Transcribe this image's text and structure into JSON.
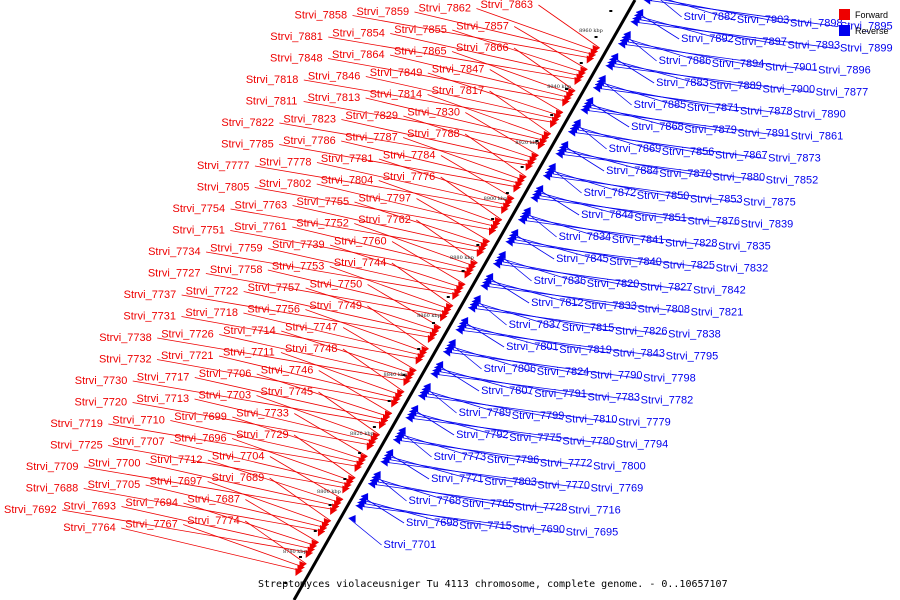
{
  "caption": "Streptomyces violaceusniger Tu 4113 chromosome, complete genome. - 0..10657107",
  "legend": [
    {
      "label": "Forward",
      "color": "#ee0000"
    },
    {
      "label": "Reverse",
      "color": "#0000ee"
    }
  ],
  "colors": {
    "forward": "#ee0000",
    "reverse": "#0000ee",
    "axis": "#000000"
  },
  "ticks": [
    "8780 kbp",
    "8800 kbp",
    "8820 kbp",
    "8840 kbp",
    "8860 kbp",
    "8880 kbp",
    "8900 kbp",
    "8920 kbp",
    "8940 kbp",
    "8960 kbp"
  ],
  "forward_labels": [
    "Strvi_7863",
    "Strvi_7862",
    "Strvi_7859",
    "Strvi_7858",
    "Strvi_7857",
    "Strvi_7855",
    "Strvi_7854",
    "Strvi_7881",
    "Strvi_7866",
    "Strvi_7865",
    "Strvi_7864",
    "Strvi_7848",
    "Strvi_7847",
    "Strvi_7849",
    "Strvi_7846",
    "Strvi_7818",
    "Strvi_7817",
    "Strvi_7814",
    "Strvi_7813",
    "Strvi_7811",
    "Strvi_7830",
    "Strvi_7829",
    "Strvi_7823",
    "Strvi_7822",
    "Strvi_7788",
    "Strvi_7787",
    "Strvi_7786",
    "Strvi_7785",
    "Strvi_7784",
    "Strvi_7781",
    "Strvi_7778",
    "Strvi_7777",
    "Strvi_7776",
    "Strvi_7804",
    "Strvi_7802",
    "Strvi_7805",
    "Strvi_7797",
    "Strvi_7755",
    "Strvi_7763",
    "Strvi_7754",
    "Strvi_7762",
    "Strvi_7752",
    "Strvi_7761",
    "Strvi_7751",
    "Strvi_7760",
    "Strvi_7739",
    "Strvi_7759",
    "Strvi_7734",
    "Strvi_7744",
    "Strvi_7753",
    "Strvi_7758",
    "Strvi_7727",
    "Strvi_7750",
    "Strvi_7757",
    "Strvi_7722",
    "Strvi_7737",
    "Strvi_7749",
    "Strvi_7756",
    "Strvi_7718",
    "Strvi_7731",
    "Strvi_7747",
    "Strvi_7714",
    "Strvi_7726",
    "Strvi_7738",
    "Strvi_7748",
    "Strvi_7711",
    "Strvi_7721",
    "Strvi_7732",
    "Strvi_7746",
    "Strvi_7706",
    "Strvi_7717",
    "Strvi_7730",
    "Strvi_7745",
    "Strvi_7703",
    "Strvi_7713",
    "Strvi_7720",
    "Strvi_7733",
    "Strvi_7699",
    "Strvi_7710",
    "Strvi_7719",
    "Strvi_7729",
    "Strvi_7696",
    "Strvi_7707",
    "Strvi_7725",
    "Strvi_7704",
    "Strvi_7712",
    "Strvi_7700",
    "Strvi_7709",
    "Strvi_7689",
    "Strvi_7697",
    "Strvi_7705",
    "Strvi_7688",
    "Strvi_7687",
    "Strvi_7694",
    "Strvi_7693",
    "Strvi_7692",
    "Strvi_7774",
    "Strvi_7767",
    "Strvi_7764"
  ],
  "reverse_labels": [
    "Strvi_7882",
    "Strvi_7903",
    "Strvi_7898",
    "Strvi_7895",
    "Strvi_7892",
    "Strvi_7897",
    "Strvi_7893",
    "Strvi_7899",
    "Strvi_7886",
    "Strvi_7894",
    "Strvi_7901",
    "Strvi_7896",
    "Strvi_7883",
    "Strvi_7889",
    "Strvi_7900",
    "Strvi_7877",
    "Strvi_7885",
    "Strvi_7871",
    "Strvi_7878",
    "Strvi_7890",
    "Strvi_7868",
    "Strvi_7879",
    "Strvi_7891",
    "Strvi_7861",
    "Strvi_7869",
    "Strvi_7856",
    "Strvi_7867",
    "Strvi_7873",
    "Strvi_7884",
    "Strvi_7870",
    "Strvi_7880",
    "Strvi_7852",
    "Strvi_7872",
    "Strvi_7850",
    "Strvi_7853",
    "Strvi_7875",
    "Strvi_7844",
    "Strvi_7851",
    "Strvi_7876",
    "Strvi_7839",
    "Strvi_7834",
    "Strvi_7841",
    "Strvi_7828",
    "Strvi_7835",
    "Strvi_7845",
    "Strvi_7840",
    "Strvi_7825",
    "Strvi_7832",
    "Strvi_7836",
    "Strvi_7820",
    "Strvi_7827",
    "Strvi_7842",
    "Strvi_7812",
    "Strvi_7833",
    "Strvi_7808",
    "Strvi_7821",
    "Strvi_7837",
    "Strvi_7815",
    "Strvi_7826",
    "Strvi_7838",
    "Strvi_7801",
    "Strvi_7819",
    "Strvi_7843",
    "Strvi_7795",
    "Strvi_7806",
    "Strvi_7824",
    "Strvi_7790",
    "Strvi_7798",
    "Strvi_7807",
    "Strvi_7791",
    "Strvi_7783",
    "Strvi_7782",
    "Strvi_7789",
    "Strvi_7799",
    "Strvi_7810",
    "Strvi_7779",
    "Strvi_7792",
    "Strvi_7775",
    "Strvi_7780",
    "Strvi_7794",
    "Strvi_7773",
    "Strvi_7796",
    "Strvi_7772",
    "Strvi_7800",
    "Strvi_7771",
    "Strvi_7803",
    "Strvi_7770",
    "Strvi_7769",
    "Strvi_7768",
    "Strvi_7765",
    "Strvi_7728",
    "Strvi_7716",
    "Strvi_7698",
    "Strvi_7715",
    "Strvi_7690",
    "Strvi_7695",
    "Strvi_7701"
  ]
}
